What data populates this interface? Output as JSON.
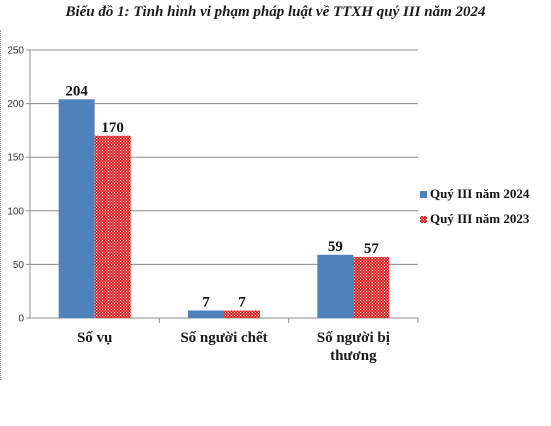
{
  "chart_data": {
    "type": "bar",
    "title": "Biểu đồ 1: Tình hình vi phạm pháp luật về TTXH quý III năm 2024",
    "categories": [
      [
        "Số vụ"
      ],
      [
        "Số người chết"
      ],
      [
        "Số người bị",
        "thương"
      ]
    ],
    "series": [
      {
        "name": "Quý III năm 2024",
        "values": [
          204,
          7,
          59
        ],
        "color": "#4f81bd",
        "pattern": "solid"
      },
      {
        "name": "Quý III năm 2023",
        "values": [
          170,
          7,
          57
        ],
        "color": "#e02020",
        "pattern": "dotted"
      }
    ],
    "y_ticks": [
      0,
      50,
      100,
      150,
      200,
      250
    ],
    "ylim": [
      0,
      250
    ],
    "grid": true,
    "legend": "right"
  }
}
